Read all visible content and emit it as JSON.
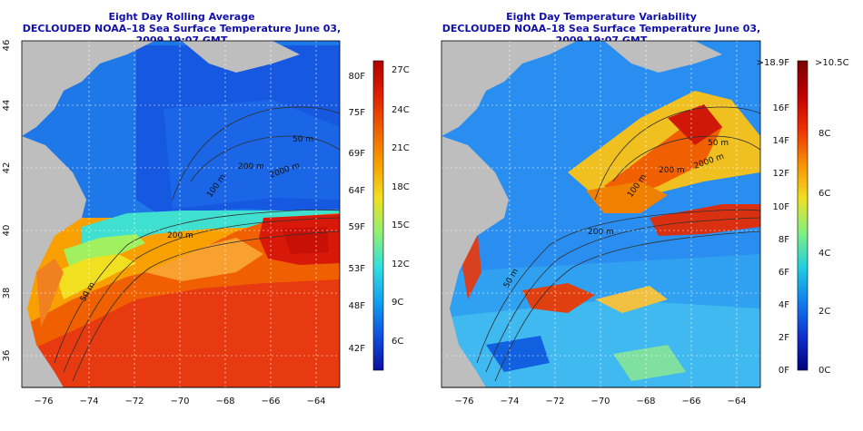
{
  "left_panel": {
    "title": "Eight Day Rolling Average",
    "subtitle": "DECLOUDED NOAA–18 Sea Surface Temperature June 03, 2009 19:07 GMT",
    "x_ticks": [
      "−76",
      "−74",
      "−72",
      "−70",
      "−68",
      "−66",
      "−64"
    ],
    "y_ticks": [
      "36",
      "38",
      "40",
      "42",
      "44",
      "46"
    ],
    "contour_labels": [
      "50 m",
      "200 m",
      "100 m",
      "2000 m",
      "200 m",
      "50 m"
    ],
    "colorbar": {
      "left_labels": [
        "80F",
        "75F",
        "69F",
        "64F",
        "59F",
        "53F",
        "48F",
        "42F"
      ],
      "right_labels": [
        "27C",
        "24C",
        "21C",
        "18C",
        "15C",
        "12C",
        "9C",
        "6C"
      ],
      "colors": [
        "#b00000",
        "#e02000",
        "#f06000",
        "#f8a000",
        "#f0e020",
        "#90f070",
        "#30e0e0",
        "#10a0f0",
        "#1050e0",
        "#0a10a0"
      ]
    }
  },
  "right_panel": {
    "title": "Eight Day Temperature Variability",
    "subtitle": "DECLOUDED NOAA–18 Sea Surface Temperature June 03, 2009 19:07 GMT",
    "x_ticks": [
      "−76",
      "−74",
      "−72",
      "−70",
      "−68",
      "−66",
      "−64"
    ],
    "y_ticks": [
      "36",
      "38",
      "40",
      "42",
      "44",
      "46"
    ],
    "contour_labels": [
      "50 m",
      "200 m",
      "100 m",
      "2000 m",
      "200 m",
      "50 m"
    ],
    "colorbar": {
      "left_labels": [
        ">18.9F",
        "16F",
        "14F",
        "12F",
        "10F",
        "8F",
        "6F",
        "4F",
        "2F",
        "0F"
      ],
      "right_labels": [
        ">10.5C",
        "8C",
        "6C",
        "4C",
        "2C",
        "0C"
      ],
      "colors": [
        "#7a0000",
        "#c00000",
        "#f03000",
        "#f89000",
        "#f0e020",
        "#80f080",
        "#20d0e0",
        "#1080f0",
        "#1030d0",
        "#000080"
      ]
    }
  },
  "colors": {
    "land": "#bebebe",
    "title": "#1010a8",
    "grid": "#ffffff",
    "contour": "#303030"
  }
}
